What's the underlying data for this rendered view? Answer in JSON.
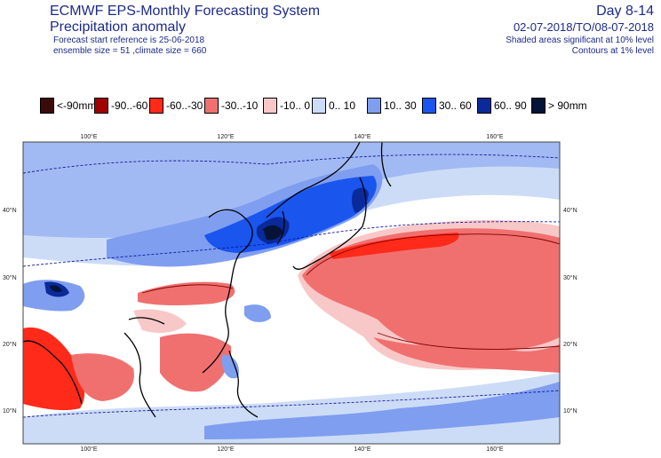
{
  "header": {
    "system_title": "ECMWF EPS-Monthly Forecasting System",
    "product_title": "Precipitation anomaly",
    "forecast_start": "Forecast start reference is 25-06-2018",
    "ensemble_info": "ensemble size = 51 ,climate size = 660",
    "day_range": "Day 8-14",
    "valid_period": "02-07-2018/TO/08-07-2018",
    "shading_note": "Shaded areas significant at 10% level",
    "contour_note": "Contours at 1% level"
  },
  "legend": {
    "items": [
      {
        "label": "<-90mm",
        "color": "#3b0a0a"
      },
      {
        "label": "-90..-60",
        "color": "#a00000"
      },
      {
        "label": "-60..-30",
        "color": "#ff2a1a"
      },
      {
        "label": "-30..-10",
        "color": "#f07070"
      },
      {
        "label": "-10..  0",
        "color": "#f8c8c8"
      },
      {
        "label": "0.. 10",
        "color": "#cddcf6"
      },
      {
        "label": "10.. 30",
        "color": "#7f9ef0"
      },
      {
        "label": "30.. 60",
        "color": "#1a55ee"
      },
      {
        "label": "60.. 90",
        "color": "#0a2a9a"
      },
      {
        "label": "> 90mm",
        "color": "#061338"
      }
    ]
  },
  "map": {
    "lon_labels": [
      "100°E",
      "120°E",
      "140°E",
      "160°E"
    ],
    "lat_labels": [
      "40°N",
      "30°N",
      "20°N",
      "10°N"
    ]
  }
}
